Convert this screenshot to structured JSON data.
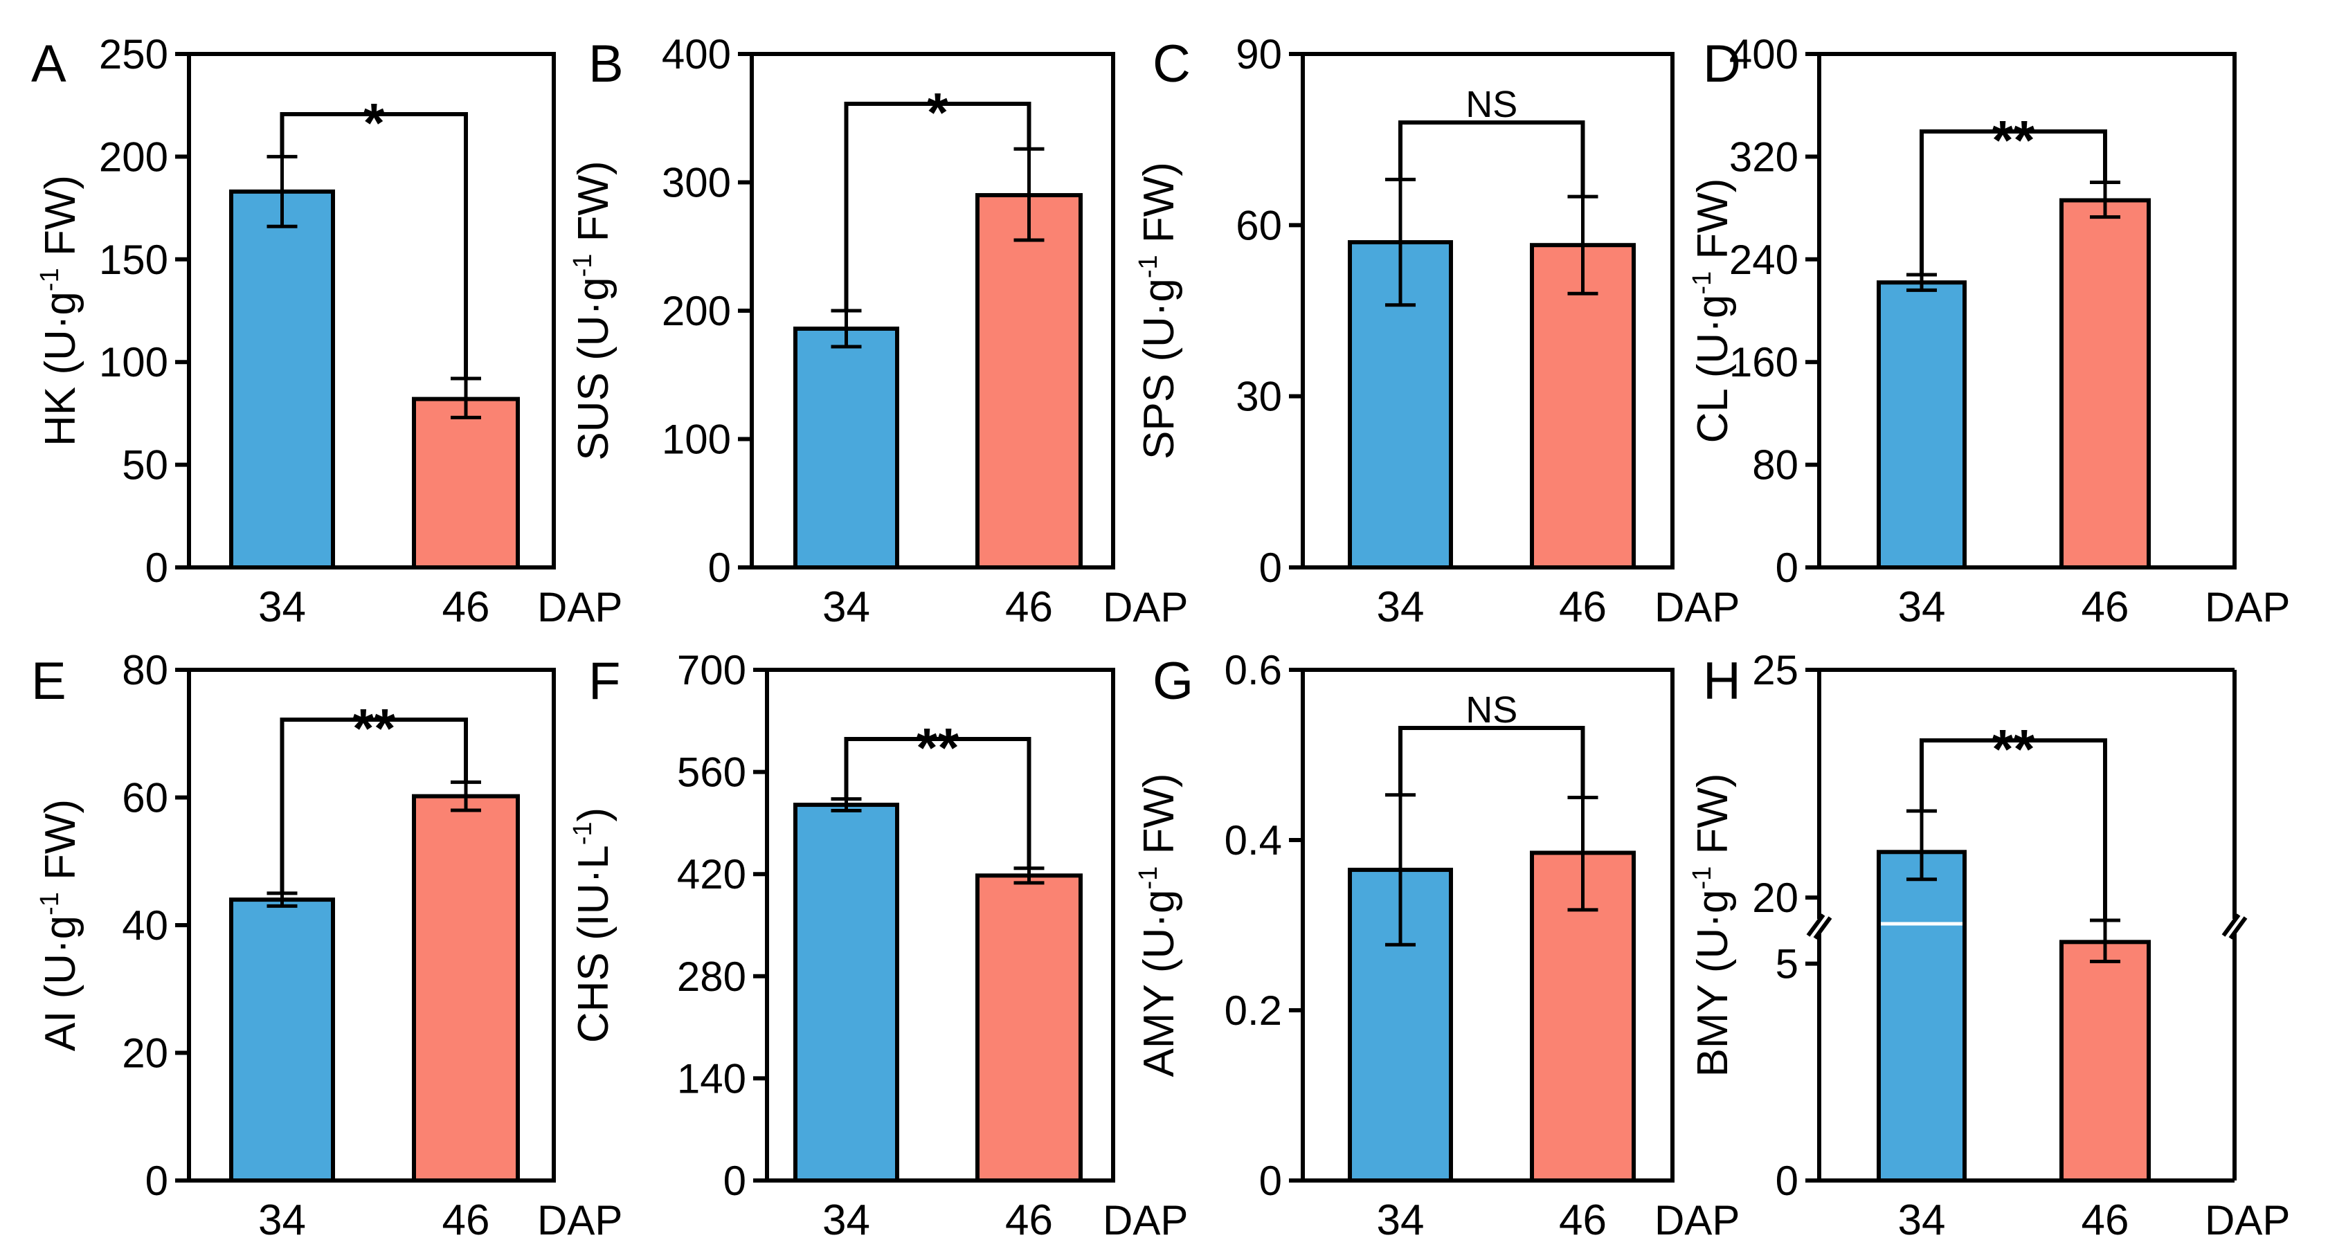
{
  "figure": {
    "x_unit": "DAP",
    "colors": {
      "c34": "#4aa8dc",
      "c46": "#fa8372"
    }
  },
  "chart_data": [
    {
      "type": "bar",
      "panel": "A",
      "categories": [
        "34",
        "46"
      ],
      "values": [
        183,
        82
      ],
      "errors_low": [
        166,
        73
      ],
      "errors_high": [
        200,
        92
      ],
      "ylabel": "HK (U·g",
      "ylabel_sup": "-1",
      "ylabel_tail": " FW)",
      "ylim": [
        0,
        250
      ],
      "yticks": [
        "0",
        "50",
        "100",
        "150",
        "200",
        "250"
      ],
      "xlabel": "DAP",
      "significance": "*"
    },
    {
      "type": "bar",
      "panel": "B",
      "categories": [
        "34",
        "46"
      ],
      "values": [
        186,
        290
      ],
      "errors_low": [
        172,
        255
      ],
      "errors_high": [
        200,
        326
      ],
      "ylabel": "SUS (U·g",
      "ylabel_sup": "-1",
      "ylabel_tail": " FW)",
      "ylim": [
        0,
        400
      ],
      "yticks": [
        "0",
        "100",
        "200",
        "300",
        "400"
      ],
      "xlabel": "DAP",
      "significance": "*"
    },
    {
      "type": "bar",
      "panel": "C",
      "categories": [
        "34",
        "46"
      ],
      "values": [
        57,
        56.5
      ],
      "errors_low": [
        46,
        48
      ],
      "errors_high": [
        68,
        65
      ],
      "ylabel": "SPS (U·g",
      "ylabel_sup": "-1",
      "ylabel_tail": " FW)",
      "ylim": [
        0,
        90
      ],
      "yticks": [
        "0",
        "30",
        "60",
        "90"
      ],
      "xlabel": "DAP",
      "significance": "NS"
    },
    {
      "type": "bar",
      "panel": "D",
      "categories": [
        "34",
        "46"
      ],
      "values": [
        222,
        286
      ],
      "errors_low": [
        216,
        273
      ],
      "errors_high": [
        228,
        300
      ],
      "ylabel": "CL (U·g",
      "ylabel_sup": "-1",
      "ylabel_tail": " FW)",
      "ylim": [
        0,
        400
      ],
      "yticks": [
        "0",
        "80",
        "160",
        "240",
        "320",
        "400"
      ],
      "xlabel": "DAP",
      "significance": "**"
    },
    {
      "type": "bar",
      "panel": "E",
      "categories": [
        "34",
        "46"
      ],
      "values": [
        44,
        60.2
      ],
      "errors_low": [
        43,
        58
      ],
      "errors_high": [
        45,
        62.4
      ],
      "ylabel": "AI (U·g",
      "ylabel_sup": "-1",
      "ylabel_tail": " FW)",
      "ylim": [
        0,
        80
      ],
      "yticks": [
        "0",
        "20",
        "40",
        "60",
        "80"
      ],
      "xlabel": "DAP",
      "significance": "**"
    },
    {
      "type": "bar",
      "panel": "F",
      "categories": [
        "34",
        "46"
      ],
      "values": [
        515,
        418
      ],
      "errors_low": [
        507,
        408
      ],
      "errors_high": [
        523,
        428
      ],
      "ylabel": "CHS (IU·L",
      "ylabel_sup": "-1",
      "ylabel_tail": ")",
      "ylim": [
        0,
        700
      ],
      "yticks": [
        "0",
        "140",
        "280",
        "420",
        "560",
        "700"
      ],
      "xlabel": "DAP",
      "significance": "**"
    },
    {
      "type": "bar",
      "panel": "G",
      "categories": [
        "34",
        "46"
      ],
      "values": [
        0.365,
        0.385
      ],
      "errors_low": [
        0.277,
        0.318
      ],
      "errors_high": [
        0.453,
        0.45
      ],
      "ylabel": "AMY (U·g",
      "ylabel_sup": "-1",
      "ylabel_tail": " FW)",
      "ylim": [
        0,
        0.6
      ],
      "yticks": [
        "0",
        "0.2",
        "0.4",
        "0.6"
      ],
      "xlabel": "DAP",
      "significance": "NS"
    },
    {
      "type": "bar",
      "panel": "H",
      "categories": [
        "34",
        "46"
      ],
      "values": [
        21,
        5.5
      ],
      "errors_low": [
        20.4,
        5.05
      ],
      "errors_high": [
        21.9,
        6.05
      ],
      "ylabel": "BMY (U·g",
      "ylabel_sup": "-1",
      "ylabel_tail": " FW)",
      "ylim": [
        0,
        25
      ],
      "axis_break": [
        6,
        19.5
      ],
      "yticks": [
        "0",
        "5",
        "20",
        "25"
      ],
      "xlabel": "DAP",
      "significance": "**"
    }
  ]
}
